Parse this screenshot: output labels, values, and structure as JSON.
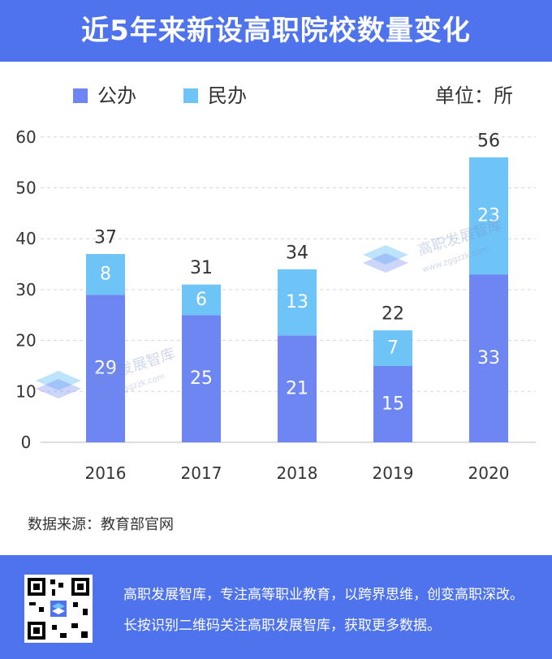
{
  "header": {
    "title": "近5年来新设高职院校数量变化"
  },
  "legend": [
    {
      "label": "公办",
      "color": "#6d86f1"
    },
    {
      "label": "民办",
      "color": "#6ec3f7"
    }
  ],
  "unit_label": "单位：所",
  "source_text": "数据来源：教育部官网",
  "footer": {
    "line1": "高职发展智库，专注高等职业教育，以跨界思维，创变高职深改。",
    "line2": "长按识别二维码关注高职发展智库，获取更多数据。"
  },
  "watermark": {
    "name": "高职发展智库",
    "url": "www.zggzzk.com"
  },
  "chart_data": {
    "type": "bar",
    "stacked": true,
    "categories": [
      "2016",
      "2017",
      "2018",
      "2019",
      "2020"
    ],
    "series": [
      {
        "name": "公办",
        "values": [
          29,
          25,
          21,
          15,
          33
        ],
        "color": "#6d86f1"
      },
      {
        "name": "民办",
        "values": [
          8,
          6,
          13,
          7,
          23
        ],
        "color": "#6ec3f7"
      }
    ],
    "totals": [
      37,
      31,
      34,
      22,
      56
    ],
    "yticks": [
      0,
      10,
      20,
      30,
      40,
      50,
      60
    ],
    "ylim": [
      0,
      60
    ],
    "grid": true,
    "legend_position": "top-left"
  }
}
